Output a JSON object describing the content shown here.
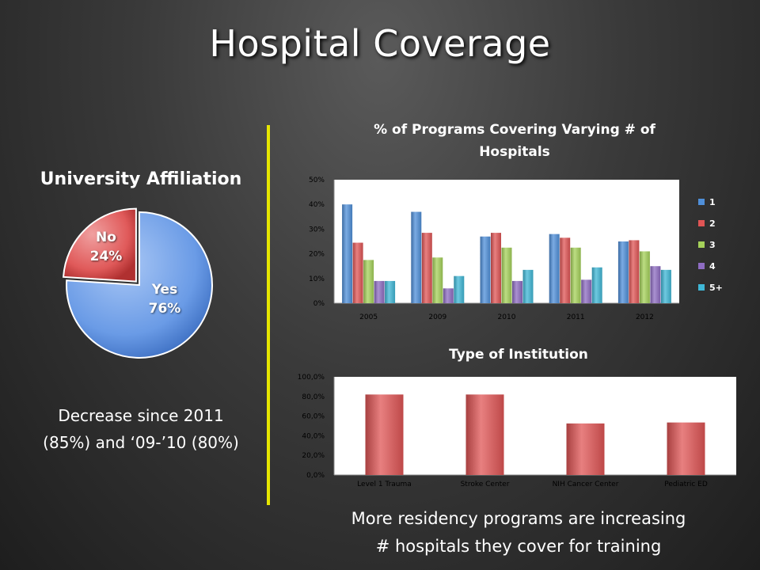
{
  "slide": {
    "title": "Hospital Coverage",
    "left_note_line1": "Decrease since 2011",
    "left_note_line2": "(85%) and ‘09-’10 (80%)",
    "right_note_line1": "More residency programs are increasing",
    "right_note_line2": "# hospitals they cover for training"
  },
  "chart_data": [
    {
      "type": "pie",
      "title": "University Affiliation",
      "slices": [
        {
          "label": "Yes",
          "value": 76,
          "display": "76%",
          "color": "#6a9be6"
        },
        {
          "label": "No",
          "value": 24,
          "display": "24%",
          "color": "#e05a5a"
        }
      ]
    },
    {
      "type": "bar",
      "title": "% of Programs Covering Varying # of Hospitals",
      "title_line1": "% of Programs Covering Varying # of",
      "title_line2": "Hospitals",
      "categories": [
        "2005",
        "2009",
        "2010",
        "2011",
        "2012"
      ],
      "series": [
        {
          "name": "1",
          "values": [
            40,
            37,
            27,
            28,
            25
          ],
          "color": "#4f8fd9"
        },
        {
          "name": "2",
          "values": [
            24.5,
            28.5,
            28.5,
            26.5,
            25.5
          ],
          "color": "#e05555"
        },
        {
          "name": "3",
          "values": [
            17.5,
            18.5,
            22.5,
            22.5,
            21
          ],
          "color": "#a5d15a"
        },
        {
          "name": "4",
          "values": [
            9,
            6,
            9,
            9.5,
            15
          ],
          "color": "#8e6cc2"
        },
        {
          "name": "5+",
          "values": [
            9,
            11,
            13.5,
            14.5,
            13.5
          ],
          "color": "#3fb7d6"
        }
      ],
      "ylim": [
        0,
        50
      ],
      "yticks": [
        "0%",
        "10%",
        "20%",
        "30%",
        "40%",
        "50%"
      ],
      "legend_position": "right",
      "grid": false
    },
    {
      "type": "bar",
      "title": "Type of Institution",
      "categories": [
        "Level 1 Trauma",
        "Stroke Center",
        "NIH Cancer Center",
        "Pediatric ED"
      ],
      "values": [
        82,
        82,
        52.5,
        53.5
      ],
      "color": "#e05555",
      "ylim": [
        0,
        100
      ],
      "yticks": [
        "0,0%",
        "20,0%",
        "40,0%",
        "60,0%",
        "80,0%",
        "100,0%"
      ],
      "grid": false
    }
  ]
}
